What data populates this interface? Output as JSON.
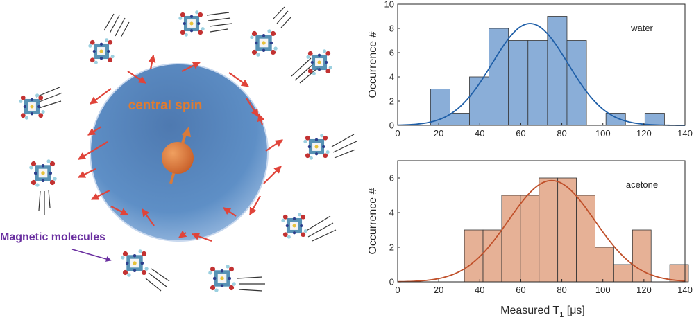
{
  "figure": {
    "central_label": "central spin",
    "molecules_label": "Magnetic molecules",
    "colors": {
      "sphere": "#5e8fc6",
      "spin": "#d97a3a",
      "arrows": "#e0443a",
      "molecules_label": "#6a2fa0",
      "central_label": "#e07b2f"
    }
  },
  "xlabel": "Measured T",
  "xlabel_sub": "1",
  "xlabel_units": " [μs]",
  "chart_data": [
    {
      "type": "bar",
      "annotation": "water",
      "ylabel": "Occurrence #",
      "xlim": [
        0,
        140
      ],
      "ylim": [
        0,
        10
      ],
      "xticks": [
        0,
        20,
        40,
        60,
        80,
        100,
        120,
        140
      ],
      "yticks": [
        0,
        2,
        4,
        6,
        8,
        10
      ],
      "bin_edges": [
        16,
        25.5,
        35,
        44.5,
        54,
        63.5,
        73,
        82.5,
        92,
        101.5,
        111,
        120.5,
        130
      ],
      "counts": [
        3,
        1,
        4,
        8,
        7,
        7,
        9,
        7,
        0,
        1,
        0,
        1
      ],
      "fit": {
        "mean": 64.5,
        "sd": 18.5,
        "peak": 8.4
      },
      "colors": {
        "bar": "#8aaed8",
        "line": "#1f5fa8"
      }
    },
    {
      "type": "bar",
      "annotation": "acetone",
      "ylabel": "Occurrence #",
      "xlim": [
        0,
        140
      ],
      "ylim": [
        0,
        7
      ],
      "xticks": [
        0,
        20,
        40,
        60,
        80,
        100,
        120,
        140
      ],
      "yticks": [
        0,
        2,
        4,
        6
      ],
      "bin_edges": [
        32.5,
        41.6,
        50.7,
        59.8,
        68.9,
        78,
        87.1,
        96.2,
        105.3,
        114.4,
        123.5,
        132.6,
        141.7
      ],
      "counts": [
        3,
        3,
        5,
        5,
        6,
        6,
        5,
        2,
        1,
        3,
        0,
        1
      ],
      "fit": {
        "mean": 75,
        "sd": 21,
        "peak": 5.85
      },
      "colors": {
        "bar": "#e6b196",
        "line": "#c0502a"
      }
    }
  ]
}
